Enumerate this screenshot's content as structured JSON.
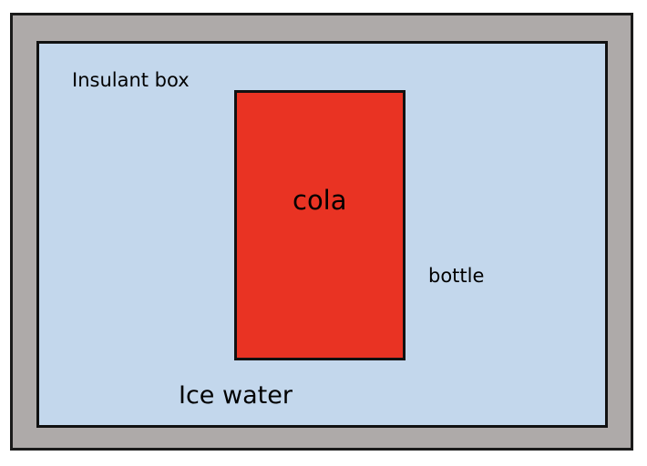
{
  "labels": {
    "insulant_box": "Insulant box",
    "cola": "cola",
    "bottle": "bottle",
    "ice_water": "Ice water"
  },
  "colors": {
    "box_wall": "#aeaaa9",
    "ice_water": "#c3d7ec",
    "cola": "#e93323",
    "outline": "#111111"
  }
}
